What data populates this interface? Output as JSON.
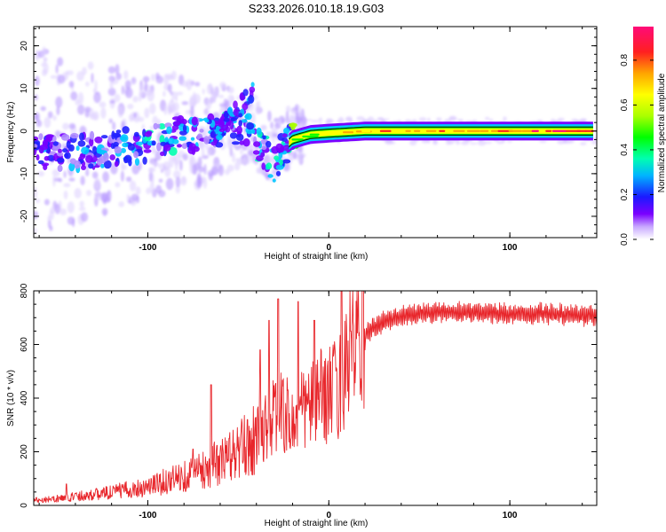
{
  "page_title": "S233.2026.010.18.19.G03",
  "colors": {
    "snr_line": "#e8262b",
    "ridge": "#d81b1b",
    "frame": "#000000"
  },
  "chart_data": [
    {
      "type": "heatmap",
      "title": "S233.2026.010.18.19.G03",
      "xlabel": "Height of straight line (km)",
      "ylabel": "Frequency (Hz)",
      "xlim": [
        -163,
        148
      ],
      "ylim": [
        -25,
        24.5
      ],
      "x_ticks": [
        -100,
        0,
        100
      ],
      "y_ticks": [
        -20,
        -10,
        0,
        10,
        20
      ],
      "colorbar": {
        "label": "Normalized spectral amplitude",
        "range": [
          0,
          0.95
        ],
        "ticks": [
          0.0,
          0.2,
          0.4,
          0.6,
          0.8
        ],
        "colormap": [
          "#ffffff",
          "#b08cff",
          "#7a00ff",
          "#2020ff",
          "#00c8ff",
          "#00ffb0",
          "#00ff00",
          "#aaff00",
          "#ffff00",
          "#ffa500",
          "#ff2020",
          "#ff0080"
        ]
      },
      "ridge": [
        {
          "x": -160,
          "y": -4.5,
          "v": 0.25
        },
        {
          "x": -140,
          "y": -5,
          "v": 0.3
        },
        {
          "x": -120,
          "y": -4,
          "v": 0.3
        },
        {
          "x": -100,
          "y": -3,
          "v": 0.35
        },
        {
          "x": -85,
          "y": -1,
          "v": 0.35
        },
        {
          "x": -70,
          "y": -1,
          "v": 0.3
        },
        {
          "x": -55,
          "y": 1,
          "v": 0.35
        },
        {
          "x": -45,
          "y": 1,
          "v": 0.35
        },
        {
          "x": -38,
          "y": -4,
          "v": 0.35
        },
        {
          "x": -30,
          "y": -8,
          "v": 0.35
        },
        {
          "x": -25,
          "y": -4,
          "v": 0.4
        },
        {
          "x": -20,
          "y": -2,
          "v": 0.55
        },
        {
          "x": -10,
          "y": -0.8,
          "v": 0.65
        },
        {
          "x": 0,
          "y": -0.5,
          "v": 0.75
        },
        {
          "x": 20,
          "y": 0,
          "v": 0.8
        },
        {
          "x": 60,
          "y": 0,
          "v": 0.85
        },
        {
          "x": 100,
          "y": 0,
          "v": 0.85
        },
        {
          "x": 146,
          "y": 0,
          "v": 0.95
        }
      ]
    },
    {
      "type": "line",
      "title": "",
      "xlabel": "Height of straight line (km)",
      "ylabel": "SNR (10 * v/v)",
      "xlim": [
        -163,
        148
      ],
      "ylim": [
        0,
        800
      ],
      "x_ticks": [
        -100,
        0,
        100
      ],
      "y_ticks": [
        0,
        200,
        400,
        600,
        800
      ],
      "series": [
        {
          "x": [
            -163,
            -150,
            -140,
            -130,
            -120,
            -110,
            -100,
            -90,
            -80,
            -70,
            -65,
            -60,
            -50,
            -40,
            -35,
            -30,
            -25,
            -20,
            -15,
            -10,
            -5,
            0,
            5,
            10,
            15,
            20,
            25,
            30,
            40,
            50,
            60,
            80,
            100,
            120,
            148
          ],
          "values": [
            20,
            25,
            35,
            40,
            50,
            60,
            70,
            90,
            110,
            130,
            150,
            160,
            200,
            250,
            300,
            330,
            350,
            300,
            350,
            380,
            400,
            420,
            430,
            550,
            600,
            650,
            680,
            700,
            720,
            730,
            735,
            735,
            730,
            730,
            720
          ],
          "spikes": [
            {
              "x": -145,
              "y": 80
            },
            {
              "x": -75,
              "y": 210
            },
            {
              "x": -65,
              "y": 450
            },
            {
              "x": -55,
              "y": 250
            },
            {
              "x": -45,
              "y": 320
            },
            {
              "x": -38,
              "y": 580
            },
            {
              "x": -33,
              "y": 690
            },
            {
              "x": -28,
              "y": 770
            },
            {
              "x": -17,
              "y": 760
            },
            {
              "x": -8,
              "y": 690
            },
            {
              "x": 7,
              "y": 800
            },
            {
              "x": 12,
              "y": 650
            }
          ]
        }
      ]
    }
  ]
}
